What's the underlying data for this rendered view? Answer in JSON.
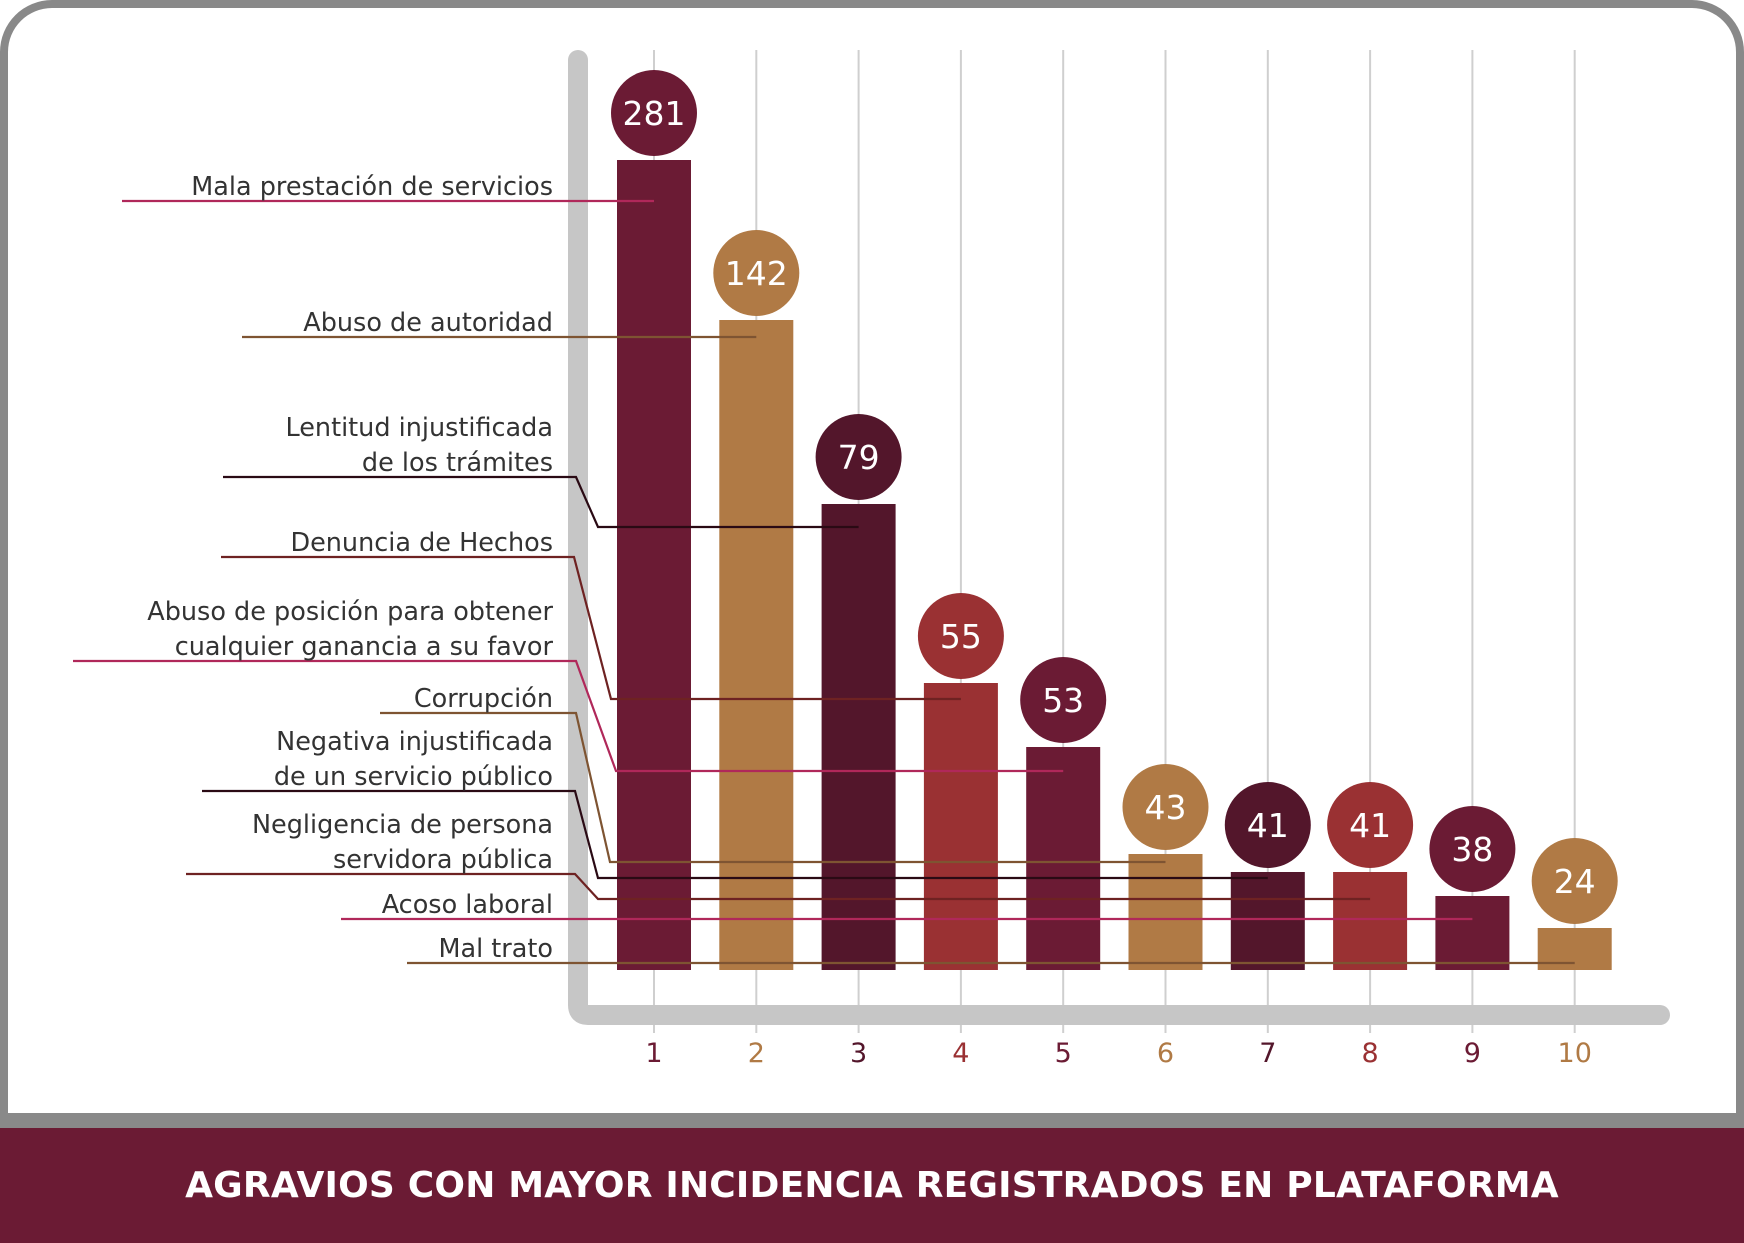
{
  "footer": {
    "title": "AGRAVIOS CON MAYOR INCIDENCIA REGISTRADOS EN PLATAFORMA"
  },
  "colors": {
    "maroon": "#6B1B34",
    "tan": "#B07A45",
    "dark_maroon": "#53162B",
    "red": "#9A3133",
    "pink_line": "#B0285A",
    "brown_line": "#7E5432",
    "dark_line": "#2A0A14",
    "red_line": "#6E2222",
    "axis": "#C6C6C6",
    "grid": "#CFCFCF",
    "frame": "#898989",
    "text": "#333333"
  },
  "chart_data": {
    "type": "bar",
    "title": "AGRAVIOS CON MAYOR INCIDENCIA REGISTRADOS EN PLATAFORMA",
    "xlabel": "",
    "ylabel": "",
    "grid": true,
    "legend": "left (category labels with leader lines)",
    "categories": [
      "1",
      "2",
      "3",
      "4",
      "5",
      "6",
      "7",
      "8",
      "9",
      "10"
    ],
    "values": [
      281,
      142,
      79,
      55,
      53,
      43,
      41,
      41,
      38,
      24
    ],
    "labels": [
      [
        "Mala prestación de servicios"
      ],
      [
        "Abuso de autoridad"
      ],
      [
        "Lentitud injustificada",
        "de los trámites"
      ],
      [
        "Denuncia de Hechos"
      ],
      [
        "Abuso de posición para obtener",
        "cualquier ganancia a su favor"
      ],
      [
        "Corrupción"
      ],
      [
        "Negativa injustificada",
        "de un servicio público"
      ],
      [
        "Negligencia de persona",
        "servidora pública"
      ],
      [
        "Acoso laboral"
      ],
      [
        "Mal trato"
      ]
    ],
    "bar_colors": [
      "#6B1B34",
      "#B07A45",
      "#53162B",
      "#9A3133",
      "#6B1B34",
      "#B07A45",
      "#53162B",
      "#9A3133",
      "#6B1B34",
      "#B07A45"
    ],
    "line_colors": [
      "#B0285A",
      "#7E5432",
      "#2A0A14",
      "#6E2222",
      "#B0285A",
      "#7E5432",
      "#2A0A14",
      "#6E2222",
      "#B0285A",
      "#7E5432"
    ]
  }
}
